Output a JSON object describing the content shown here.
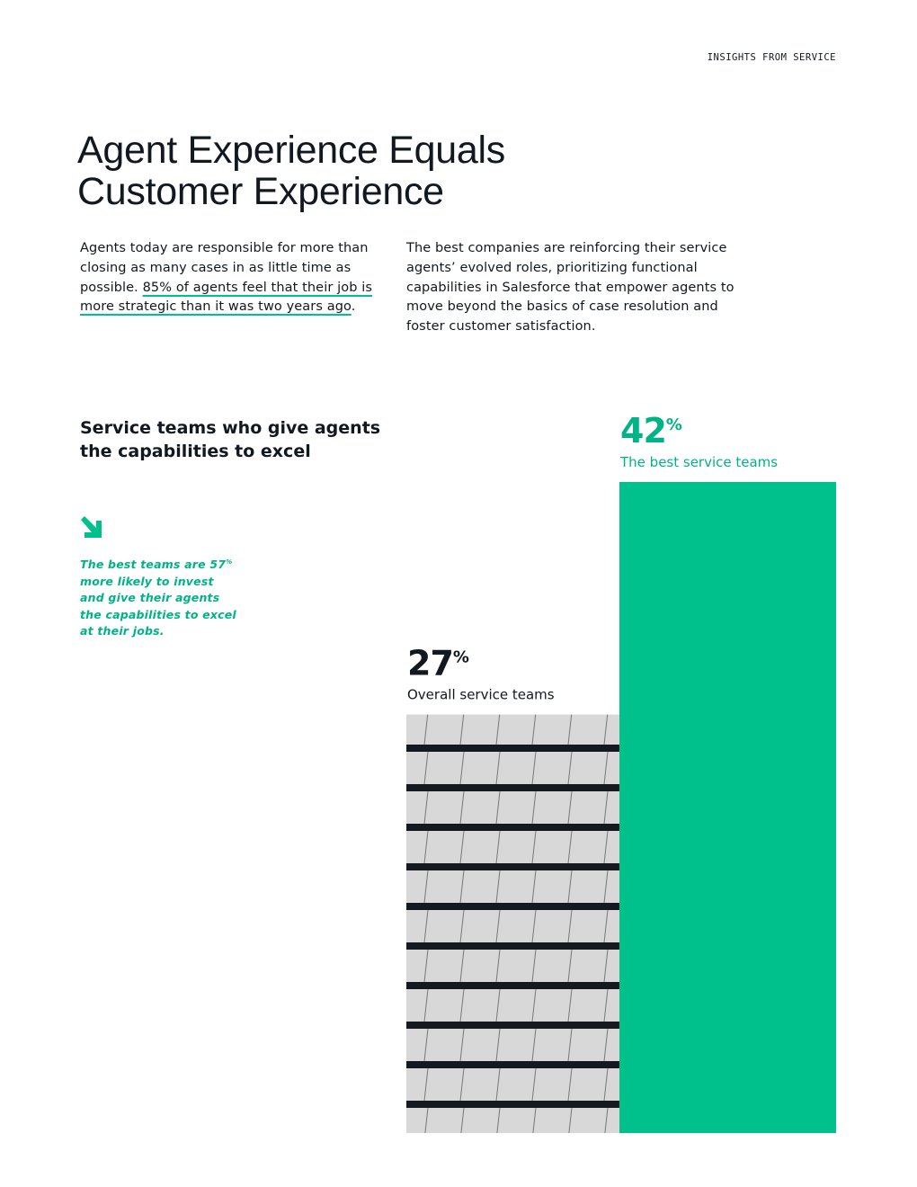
{
  "header": {
    "label": "INSIGHTS FROM SERVICE"
  },
  "title": {
    "line1": "Agent Experience Equals",
    "line2": "Customer Experience"
  },
  "intro": {
    "left": {
      "before": "Agents today are responsible for more than closing as many cases in as little time as possible. ",
      "highlight": "85% of agents feel that their job is more strategic than it was two years ago",
      "after": "."
    },
    "right": "The best companies are reinforcing their service agents’ evolved roles, prioritizing functional capabilities in Salesforce that empower agents to move beyond the basics of case resolution and foster customer satisfaction."
  },
  "callout": {
    "before": "The best teams are ",
    "number": "57",
    "unit": "%",
    "after": " more likely to invest and give their agents the capabilities to excel at their jobs."
  },
  "chart_data": {
    "type": "bar",
    "title": "Service teams who give agents the capabilities to excel",
    "categories": [
      "Overall service teams",
      "The best service teams"
    ],
    "values": [
      27,
      42
    ],
    "unit": "%",
    "colors": [
      "#9a9a9a",
      "#00c08b"
    ],
    "label_colors": [
      "#111820",
      "#00b386"
    ]
  }
}
